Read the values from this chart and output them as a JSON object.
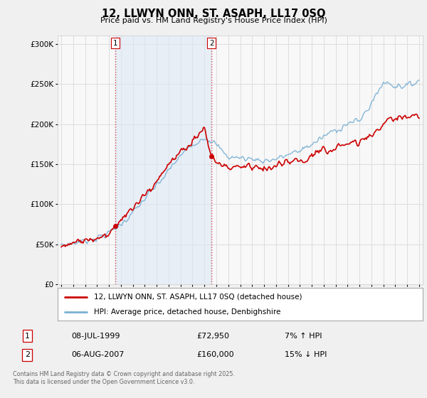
{
  "title": "12, LLWYN ONN, ST. ASAPH, LL17 0SQ",
  "subtitle": "Price paid vs. HM Land Registry's House Price Index (HPI)",
  "ylabel_ticks": [
    "£0",
    "£50K",
    "£100K",
    "£150K",
    "£200K",
    "£250K",
    "£300K"
  ],
  "ytick_values": [
    0,
    50000,
    100000,
    150000,
    200000,
    250000,
    300000
  ],
  "ylim": [
    0,
    310000
  ],
  "xlim_start": 1994.7,
  "xlim_end": 2025.3,
  "bg_color": "#f0f0f0",
  "plot_bg_color": "#f8f8f8",
  "line_color_property": "#cc0000",
  "line_color_hpi": "#7ab0d4",
  "sale1_year": 1999.52,
  "sale1_price": 72950,
  "sale2_year": 2007.59,
  "sale2_price": 160000,
  "legend_property": "12, LLWYN ONN, ST. ASAPH, LL17 0SQ (detached house)",
  "legend_hpi": "HPI: Average price, detached house, Denbighshire",
  "annotation1_date": "08-JUL-1999",
  "annotation1_price": "£72,950",
  "annotation1_hpi": "7% ↑ HPI",
  "annotation2_date": "06-AUG-2007",
  "annotation2_price": "£160,000",
  "annotation2_hpi": "15% ↓ HPI",
  "footer": "Contains HM Land Registry data © Crown copyright and database right 2025.\nThis data is licensed under the Open Government Licence v3.0.",
  "grid_color": "#dddddd",
  "vline_color": "#cc0000",
  "shade_color": "#dce8f5",
  "shade_alpha": 0.6
}
